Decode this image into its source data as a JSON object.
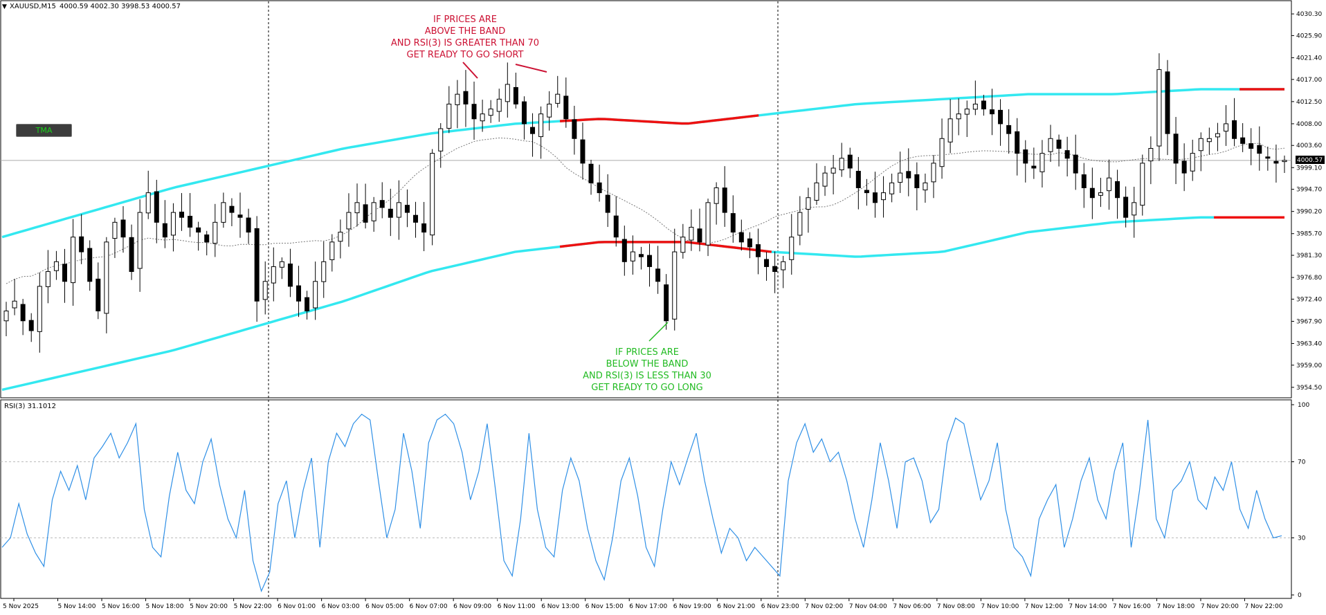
{
  "chart_header": {
    "symbol": "XAUUSD,M15",
    "ohlc": "4000.59 4002.30 3998.53 4000.57"
  },
  "indicator_button": {
    "label": "TMA"
  },
  "rsi_header": {
    "label": "RSI(3) 31.1012"
  },
  "price_label": "4000.57",
  "annotations": {
    "short": [
      "IF  PRICES ARE",
      "ABOVE THE BAND",
      "AND  RSI(3)  IS  GREATER THAN  70",
      "GET  READY  TO GO  SHORT"
    ],
    "long": [
      "IF  PRICES ARE",
      "BELOW  THE BAND",
      "AND  RSI(3)  IS  LESS THAN  30",
      "GET  READY  TO GO  LONG"
    ]
  },
  "colors": {
    "band": "#33e8f0",
    "band_alert": "#ee1111",
    "rsi_line": "#2e8fe6",
    "short_text": "#cc1133",
    "long_text": "#22bb22",
    "candle": "#000000"
  },
  "chart_data": [
    {
      "type": "candlestick",
      "title": "XAUUSD,M15",
      "ylim": [
        3952.8,
        4032.0
      ],
      "y_ticks": [
        "4030.30",
        "4025.90",
        "4021.40",
        "4017.00",
        "4012.50",
        "4008.00",
        "4003.60",
        "3999.10",
        "3994.70",
        "3990.20",
        "3985.70",
        "3981.30",
        "3976.80",
        "3972.40",
        "3967.90",
        "3963.40",
        "3959.00",
        "3954.50"
      ],
      "x_ticks": [
        "5 Nov 2025",
        "5 Nov 14:00",
        "5 Nov 16:00",
        "5 Nov 18:00",
        "5 Nov 20:00",
        "5 Nov 22:00",
        "6 Nov 01:00",
        "6 Nov 03:00",
        "6 Nov 05:00",
        "6 Nov 07:00",
        "6 Nov 09:00",
        "6 Nov 11:00",
        "6 Nov 13:00",
        "6 Nov 15:00",
        "6 Nov 17:00",
        "6 Nov 19:00",
        "6 Nov 21:00",
        "6 Nov 23:00",
        "7 Nov 02:00",
        "7 Nov 04:00",
        "7 Nov 06:00",
        "7 Nov 08:00",
        "7 Nov 10:00",
        "7 Nov 12:00",
        "7 Nov 14:00",
        "7 Nov 16:00",
        "7 Nov 18:00",
        "7 Nov 20:00",
        "7 Nov 22:00"
      ],
      "current_price": 4000.57,
      "close_series": [
        3970,
        3972,
        3968,
        3966,
        3975,
        3978,
        3980,
        3976,
        3985,
        3982,
        3976,
        3970,
        3984,
        3988,
        3985,
        3978,
        3990,
        3994,
        3988,
        3985,
        3990,
        3989,
        3987,
        3986,
        3984,
        3988,
        3992,
        3990,
        3989,
        3986,
        3972,
        3976,
        3979,
        3980,
        3975,
        3972,
        3970,
        3976,
        3980,
        3984,
        3986,
        3990,
        3992,
        3988,
        3992,
        3991,
        3989,
        3992,
        3990,
        3988,
        3986,
        4002,
        4007,
        4012,
        4014,
        4012,
        4009,
        4010,
        4011,
        4013,
        4016,
        4012,
        4008,
        4006,
        4010,
        4012,
        4014,
        4009,
        4005,
        4000,
        3996,
        3994,
        3990,
        3985,
        3980,
        3982,
        3981,
        3979,
        3976,
        3968,
        3982,
        3985,
        3987,
        3984,
        3992,
        3995,
        3990,
        3986,
        3984,
        3983,
        3981,
        3979,
        3978,
        3980,
        3985,
        3990,
        3993,
        3996,
        3998,
        3999,
        4001,
        3999,
        3995,
        3994,
        3992,
        3994,
        3996,
        3998,
        3997,
        3995,
        3996,
        4000,
        4005,
        4009,
        4010,
        4011,
        4012,
        4011,
        4010,
        4008,
        4006,
        4002,
        4000,
        3999,
        4002,
        4005,
        4003,
        4001,
        3998,
        3995,
        3993,
        3994,
        3997,
        3993,
        3989,
        3992,
        4000,
        4003,
        4019,
        4006,
        4000,
        3998,
        4002,
        4005,
        4005,
        4006,
        4008,
        4005,
        4004,
        4003,
        4002,
        4001,
        4000,
        4000.57
      ],
      "rsi_series": [
        25,
        30,
        48,
        32,
        22,
        15,
        50,
        65,
        55,
        68,
        50,
        72,
        78,
        85,
        72,
        80,
        90,
        45,
        25,
        20,
        52,
        75,
        55,
        48,
        70,
        82,
        58,
        40,
        30,
        55,
        18,
        2,
        12,
        48,
        60,
        30,
        55,
        72,
        25,
        70,
        85,
        78,
        90,
        95,
        92,
        60,
        30,
        45,
        85,
        65,
        35,
        80,
        92,
        95,
        90,
        75,
        50,
        65,
        90,
        55,
        18,
        10,
        40,
        85,
        45,
        25,
        20,
        55,
        72,
        60,
        35,
        18,
        8,
        30,
        60,
        72,
        52,
        25,
        15,
        45,
        70,
        58,
        72,
        85,
        60,
        40,
        22,
        35,
        30,
        18,
        25,
        20,
        15,
        10,
        60,
        80,
        90,
        75,
        82,
        70,
        75,
        60,
        40,
        25,
        50,
        80,
        60,
        35,
        70,
        72,
        60,
        38,
        45,
        80,
        93,
        90,
        70,
        50,
        60,
        80,
        45,
        25,
        20,
        10,
        40,
        50,
        58,
        25,
        40,
        60,
        72,
        50,
        40,
        65,
        80,
        25,
        55,
        92,
        40,
        30,
        55,
        60,
        70,
        50,
        45,
        62,
        55,
        70,
        45,
        35,
        55,
        40,
        30,
        31.1012
      ],
      "band_upper": [
        3985,
        3990,
        3995,
        3999,
        4003,
        4006,
        4008,
        4009,
        4008,
        4010,
        4012,
        4013,
        4014,
        4014,
        4015,
        4015
      ],
      "band_lower": [
        3954,
        3958,
        3962,
        3967,
        3972,
        3978,
        3982,
        3984,
        3984,
        3982,
        3981,
        3982,
        3986,
        3988,
        3989,
        3989
      ],
      "series": [
        {
          "name": "TMA"
        }
      ]
    },
    {
      "type": "line",
      "title": "RSI(3) 31.1012",
      "ylim": [
        0,
        100
      ],
      "y_ticks": [
        "100",
        "70",
        "30",
        "0"
      ],
      "levels": [
        70,
        30
      ],
      "series": [
        {
          "name": "RSI(3)",
          "current": 31.1012
        }
      ]
    }
  ]
}
